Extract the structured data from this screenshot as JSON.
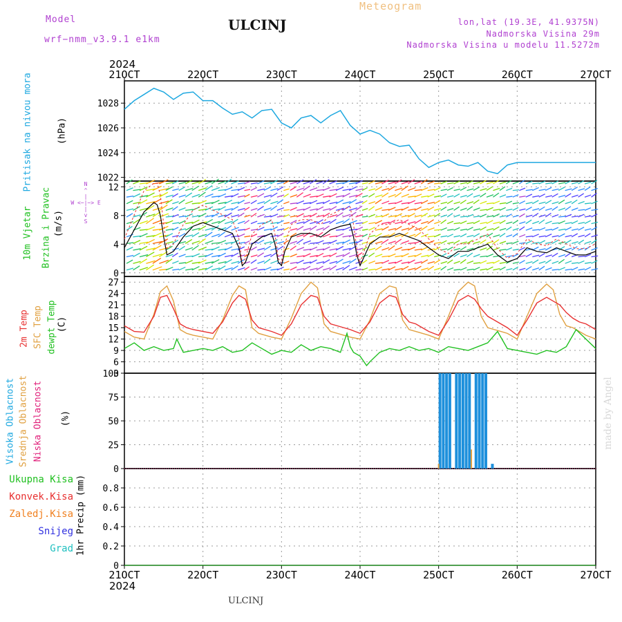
{
  "header": {
    "model_label": "Model",
    "model_name": "wrf−nmm_v3.9.1 e1km",
    "station": "ULCINJ",
    "meteogram": "Meteogram",
    "lonlat": "lon,lat (19.3E, 41.9375N)",
    "altitude": "Nadmorska Visina 29m",
    "model_altitude": "Nadmorska Visina u modelu 11.5272m",
    "year_top": "2024",
    "year_bottom": "2024",
    "footer": "ULCINJ",
    "watermark": "made by Angel"
  },
  "labels": {
    "pressure_title": "Pritisak na nivou mora",
    "pressure_unit": "(hPa)",
    "wind_title_1": "10m Vjetar",
    "wind_title_2": "Brzina i Pravac",
    "wind_unit": "(m/s)",
    "compass": "N\n^\n|\nW <−|−> E\n|\nv\nS",
    "temp_2m": "2m Temp",
    "temp_sfc": "SFC Temp",
    "temp_dew": "dewpt Temp",
    "temp_unit": "(C)",
    "cloud_high": "Visoka Oblacnost",
    "cloud_mid": "Srednja Oblacnost",
    "cloud_low": "Niska Oblacnost",
    "cloud_unit": "(%)",
    "precip_unit": "1hr Precip (mm)",
    "precip_legend": [
      "Ukupna Kisa",
      "Konvek.Kisa",
      "Zaledj.Kisa",
      "Snijeg",
      "Grad"
    ]
  },
  "colors": {
    "pressure": "#1ea8e0",
    "temp_2m": "#e83030",
    "temp_sfc": "#e0a040",
    "dewpoint": "#20c020",
    "cloud_high": "#1e90dc",
    "cloud_mid": "#e0a040",
    "cloud_low": "#e0207a",
    "precip_total": "#20c020",
    "precip_conv": "#e83030",
    "precip_frz": "#f08020",
    "precip_snow": "#3030e0",
    "precip_hail": "#20c0c0",
    "compass": "#b040d0"
  },
  "chart_data": [
    {
      "type": "line",
      "panel": "pressure",
      "ylim": [
        1021.7,
        1029.8
      ],
      "yticks": [
        1022,
        1024,
        1026,
        1028
      ],
      "x_unit": "hours since 21OCT 00UTC",
      "series": [
        {
          "x": [
            0,
            3,
            6,
            9,
            12,
            15,
            18,
            21,
            24,
            27,
            30,
            33,
            36,
            39,
            42,
            45,
            48,
            51,
            54,
            57,
            60,
            63,
            66,
            69,
            72,
            75,
            78,
            81,
            84,
            87,
            90,
            93,
            96,
            99,
            102,
            105,
            108,
            111,
            114,
            117,
            120,
            123,
            126,
            129,
            132,
            135,
            138,
            141,
            144
          ],
          "values": [
            1027.5,
            1028.2,
            1028.7,
            1029.2,
            1028.9,
            1028.3,
            1028.8,
            1028.9,
            1028.2,
            1028.2,
            1027.6,
            1027.1,
            1027.3,
            1026.8,
            1027.4,
            1027.5,
            1026.4,
            1026.0,
            1026.8,
            1027.0,
            1026.4,
            1027.0,
            1027.4,
            1026.2,
            1025.5,
            1025.8,
            1025.5,
            1024.8,
            1024.5,
            1024.6,
            1023.5,
            1022.8,
            1023.2,
            1023.4,
            1023.0,
            1022.9,
            1023.2,
            1022.5,
            1022.3,
            1023.0,
            1023.2,
            1023.2,
            1023.2,
            1023.2,
            1023.2,
            1023.2,
            1023.2,
            1023.2,
            1023.2
          ]
        }
      ]
    },
    {
      "type": "line",
      "panel": "wind",
      "ylim": [
        -0.5,
        12.8
      ],
      "yticks": [
        0,
        4,
        8,
        12
      ],
      "series": [
        {
          "x": [
            0,
            3,
            6,
            9,
            10,
            11,
            12,
            13,
            15,
            18,
            21,
            24,
            27,
            30,
            33,
            35,
            36,
            37,
            39,
            42,
            45,
            46,
            47,
            48,
            49,
            51,
            54,
            57,
            60,
            63,
            66,
            69,
            70,
            71,
            72,
            73,
            75,
            78,
            81,
            84,
            87,
            90,
            93,
            96,
            99,
            102,
            105,
            108,
            111,
            114,
            117,
            120,
            123,
            126,
            129,
            132,
            135,
            138,
            141,
            144
          ],
          "values": [
            3.5,
            6.0,
            8.5,
            9.8,
            9.5,
            8.0,
            5.0,
            2.5,
            3.0,
            5.0,
            6.5,
            7.0,
            6.5,
            6.0,
            5.5,
            3.5,
            1.0,
            1.5,
            4.0,
            5.0,
            5.5,
            4.0,
            1.5,
            1.0,
            3.0,
            5.0,
            5.5,
            5.5,
            5.0,
            6.0,
            6.5,
            6.8,
            5.0,
            2.5,
            1.0,
            2.0,
            4.0,
            5.0,
            5.0,
            5.5,
            5.0,
            4.5,
            3.5,
            2.5,
            2.0,
            3.0,
            3.0,
            3.5,
            4.0,
            2.5,
            1.5,
            2.0,
            3.5,
            3.0,
            2.8,
            3.5,
            3.0,
            2.5,
            2.5,
            3.0
          ]
        }
      ]
    },
    {
      "type": "line",
      "panel": "temperature",
      "ylim": [
        3,
        28.5
      ],
      "yticks": [
        3,
        6,
        9,
        12,
        15,
        18,
        21,
        24,
        27
      ],
      "series": [
        {
          "name": "2m Temp",
          "x": [
            0,
            3,
            6,
            9,
            11,
            13,
            15,
            17,
            19,
            21,
            24,
            27,
            30,
            33,
            35,
            37,
            39,
            41,
            43,
            45,
            48,
            51,
            54,
            57,
            59,
            61,
            63,
            65,
            67,
            69,
            72,
            75,
            78,
            81,
            83,
            85,
            87,
            89,
            91,
            93,
            96,
            99,
            102,
            105,
            107,
            109,
            111,
            113,
            115,
            117,
            120,
            123,
            126,
            129,
            131,
            133,
            135,
            137,
            139,
            141,
            144
          ],
          "values": [
            15.5,
            14.0,
            13.8,
            18.0,
            23.0,
            23.5,
            20.0,
            16.0,
            15.0,
            14.5,
            14.0,
            13.5,
            16.5,
            21.5,
            23.5,
            22.5,
            17.0,
            15.0,
            14.5,
            14.0,
            13.0,
            16.0,
            21.0,
            23.5,
            23.0,
            18.0,
            16.0,
            15.5,
            15.0,
            14.5,
            13.5,
            16.5,
            21.5,
            23.5,
            23.0,
            18.5,
            16.5,
            16.0,
            15.0,
            14.0,
            13.0,
            17.0,
            22.0,
            23.5,
            22.5,
            20.0,
            18.0,
            17.0,
            16.0,
            15.0,
            13.0,
            17.0,
            21.5,
            23.0,
            22.0,
            21.0,
            19.0,
            17.5,
            16.5,
            16.0,
            14.5
          ]
        },
        {
          "name": "SFC Temp",
          "x": [
            0,
            3,
            6,
            9,
            11,
            13,
            15,
            17,
            19,
            21,
            24,
            27,
            30,
            33,
            35,
            37,
            39,
            41,
            43,
            45,
            48,
            51,
            54,
            57,
            59,
            61,
            63,
            65,
            67,
            69,
            72,
            75,
            78,
            81,
            83,
            85,
            87,
            89,
            91,
            93,
            96,
            99,
            102,
            105,
            107,
            109,
            111,
            113,
            115,
            117,
            120,
            123,
            126,
            129,
            131,
            133,
            135,
            137,
            139,
            141,
            144
          ],
          "values": [
            14.0,
            12.5,
            12.0,
            18.5,
            24.5,
            26.0,
            22.0,
            14.5,
            13.5,
            13.0,
            12.5,
            12.0,
            17.0,
            23.5,
            26.0,
            25.0,
            15.0,
            13.5,
            13.0,
            12.5,
            12.0,
            17.5,
            24.0,
            27.0,
            25.5,
            16.0,
            14.0,
            13.5,
            13.0,
            12.5,
            12.0,
            17.0,
            24.0,
            26.0,
            25.5,
            17.0,
            14.5,
            14.0,
            13.5,
            13.0,
            12.0,
            18.0,
            24.5,
            27.0,
            26.0,
            18.0,
            15.0,
            14.5,
            14.0,
            13.5,
            12.0,
            18.0,
            24.0,
            26.5,
            25.0,
            18.5,
            15.5,
            15.0,
            14.0,
            13.0,
            12.0
          ]
        },
        {
          "name": "dewpt Temp",
          "x": [
            0,
            3,
            6,
            9,
            12,
            15,
            16,
            18,
            21,
            24,
            27,
            30,
            33,
            36,
            39,
            42,
            45,
            48,
            51,
            54,
            57,
            60,
            63,
            66,
            68,
            69,
            70,
            72,
            74,
            75,
            78,
            81,
            84,
            87,
            90,
            93,
            96,
            99,
            102,
            105,
            108,
            111,
            114,
            117,
            120,
            123,
            126,
            129,
            132,
            135,
            138,
            141,
            144
          ],
          "values": [
            9.5,
            11.0,
            9.0,
            10.0,
            9.0,
            9.5,
            12.0,
            8.5,
            9.0,
            9.5,
            9.0,
            10.0,
            8.5,
            9.0,
            11.0,
            9.5,
            8.0,
            9.0,
            8.5,
            10.5,
            9.0,
            10.0,
            9.5,
            8.5,
            13.5,
            10.0,
            8.5,
            7.5,
            5.0,
            6.0,
            8.5,
            9.5,
            9.0,
            10.0,
            9.0,
            9.5,
            8.5,
            10.0,
            9.5,
            9.0,
            10.0,
            11.0,
            14.0,
            9.5,
            9.0,
            8.5,
            8.0,
            9.0,
            8.5,
            10.0,
            14.5,
            12.0,
            9.5
          ]
        }
      ]
    },
    {
      "type": "bar",
      "panel": "cloud",
      "ylim": [
        0,
        100
      ],
      "yticks": [
        0,
        25,
        50,
        75,
        100
      ],
      "series": [
        {
          "name": "Visoka Oblacnost",
          "x": [
            96,
            97,
            98,
            99,
            100,
            101,
            102,
            103,
            104,
            105,
            106,
            107,
            108,
            109,
            110,
            111,
            112
          ],
          "values": [
            100,
            100,
            100,
            100,
            0,
            100,
            100,
            100,
            100,
            100,
            0,
            100,
            100,
            100,
            100,
            0,
            5
          ]
        },
        {
          "name": "Srednja Oblacnost",
          "x": [
            96,
            106
          ],
          "values": [
            5,
            20
          ]
        },
        {
          "name": "Niska Oblacnost",
          "x": [
            0,
            144
          ],
          "values": [
            0,
            0
          ]
        }
      ]
    },
    {
      "type": "bar",
      "panel": "precipitation",
      "ylim": [
        0,
        1.0
      ],
      "yticks": [
        0,
        0.2,
        0.4,
        0.6,
        0.8
      ],
      "series": [
        {
          "name": "Ukupna Kisa",
          "x": [
            0,
            144
          ],
          "values": [
            0,
            0
          ]
        }
      ]
    }
  ],
  "xaxis": {
    "ticks": [
      "21OCT",
      "22OCT",
      "23OCT",
      "24OCT",
      "25OCT",
      "26OCT",
      "27OCT"
    ],
    "range_hours": [
      0,
      144
    ]
  }
}
